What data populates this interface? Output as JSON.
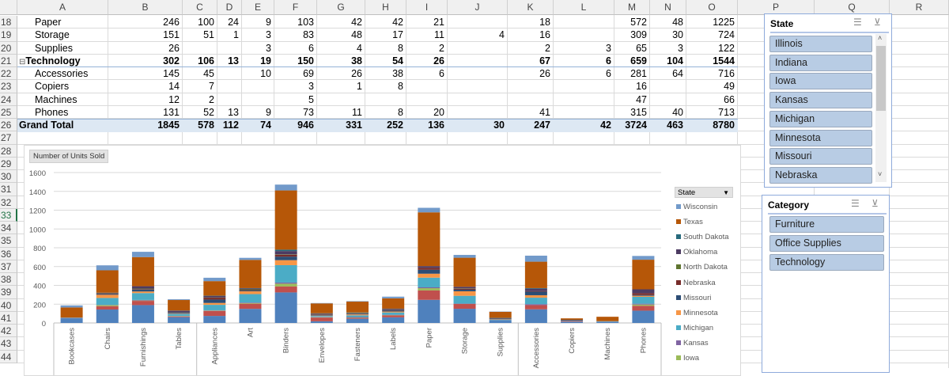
{
  "sheet": {
    "columns": [
      "A",
      "B",
      "C",
      "D",
      "E",
      "F",
      "G",
      "H",
      "I",
      "J",
      "K",
      "L",
      "M",
      "N",
      "O",
      "P",
      "Q",
      "R"
    ],
    "row_numbers": [
      18,
      19,
      20,
      21,
      22,
      23,
      24,
      25,
      26,
      27,
      28,
      29,
      30,
      31,
      32,
      33,
      34,
      35,
      36,
      37,
      38,
      39,
      40,
      41,
      42,
      43,
      44
    ],
    "selected_row": 33,
    "table_rows": [
      {
        "label": "Paper",
        "type": "item",
        "values": [
          "246",
          "100",
          "24",
          "9",
          "103",
          "42",
          "42",
          "21",
          "",
          "18",
          "",
          "572",
          "48",
          "1225"
        ]
      },
      {
        "label": "Storage",
        "type": "item",
        "values": [
          "151",
          "51",
          "1",
          "3",
          "83",
          "48",
          "17",
          "11",
          "4",
          "16",
          "",
          "309",
          "30",
          "724"
        ]
      },
      {
        "label": "Supplies",
        "type": "item",
        "values": [
          "26",
          "",
          "",
          "3",
          "6",
          "4",
          "8",
          "2",
          "",
          "2",
          "3",
          "65",
          "3",
          "122"
        ]
      },
      {
        "label": "Technology",
        "type": "group",
        "values": [
          "302",
          "106",
          "13",
          "19",
          "150",
          "38",
          "54",
          "26",
          "",
          "67",
          "6",
          "659",
          "104",
          "1544"
        ]
      },
      {
        "label": "Accessories",
        "type": "item",
        "values": [
          "145",
          "45",
          "",
          "10",
          "69",
          "26",
          "38",
          "6",
          "",
          "26",
          "6",
          "281",
          "64",
          "716"
        ]
      },
      {
        "label": "Copiers",
        "type": "item",
        "values": [
          "14",
          "7",
          "",
          "",
          "3",
          "1",
          "8",
          "",
          "",
          "",
          "",
          "16",
          "",
          "49"
        ]
      },
      {
        "label": "Machines",
        "type": "item",
        "values": [
          "12",
          "2",
          "",
          "",
          "5",
          "",
          "",
          "",
          "",
          "",
          "",
          "47",
          "",
          "66"
        ]
      },
      {
        "label": "Phones",
        "type": "item",
        "values": [
          "131",
          "52",
          "13",
          "9",
          "73",
          "11",
          "8",
          "20",
          "",
          "41",
          "",
          "315",
          "40",
          "713"
        ]
      },
      {
        "label": "Grand Total",
        "type": "total",
        "values": [
          "1845",
          "578",
          "112",
          "74",
          "946",
          "331",
          "252",
          "136",
          "30",
          "247",
          "42",
          "3724",
          "463",
          "8780"
        ]
      }
    ]
  },
  "chart_data": {
    "type": "bar",
    "stacked": true,
    "title": "Number of Units Sold",
    "legend_title": "State",
    "legend_position": "right",
    "ylim": [
      0,
      1600
    ],
    "yticks": [
      "0",
      "200",
      "400",
      "600",
      "800",
      "1000",
      "1200",
      "1400",
      "1600"
    ],
    "grid": true,
    "categories": [
      "Bookcases",
      "Chairs",
      "Furnishings",
      "Tables",
      "Appliances",
      "Art",
      "Binders",
      "Envelopes",
      "Fasteners",
      "Labels",
      "Paper",
      "Storage",
      "Supplies",
      "Accessories",
      "Copiers",
      "Machines",
      "Phones"
    ],
    "series": [
      {
        "name": "Illinois",
        "color": "#4f81bd",
        "values": [
          50,
          143,
          190,
          62,
          75,
          150,
          325,
          18,
          45,
          60,
          246,
          151,
          26,
          145,
          14,
          12,
          131
        ]
      },
      {
        "name": "Indiana",
        "color": "#c0504d",
        "values": [
          3,
          36,
          45,
          8,
          53,
          55,
          63,
          40,
          10,
          20,
          100,
          51,
          0,
          45,
          7,
          2,
          52
        ]
      },
      {
        "name": "Iowa",
        "color": "#9bbb59",
        "values": [
          0,
          11,
          4,
          4,
          4,
          6,
          30,
          3,
          3,
          3,
          24,
          1,
          0,
          0,
          0,
          0,
          13
        ]
      },
      {
        "name": "Kansas",
        "color": "#8064a2",
        "values": [
          0,
          3,
          6,
          2,
          3,
          6,
          12,
          3,
          5,
          4,
          9,
          3,
          3,
          10,
          0,
          0,
          9
        ]
      },
      {
        "name": "Michigan",
        "color": "#4bacc6",
        "values": [
          3,
          73,
          73,
          20,
          58,
          90,
          185,
          10,
          18,
          25,
          103,
          83,
          6,
          69,
          3,
          5,
          73
        ]
      },
      {
        "name": "Minnesota",
        "color": "#f79646",
        "values": [
          0,
          34,
          17,
          4,
          20,
          30,
          53,
          5,
          10,
          10,
          42,
          48,
          4,
          26,
          1,
          0,
          11
        ]
      },
      {
        "name": "Missouri",
        "color": "#2c4d75",
        "values": [
          2,
          8,
          20,
          8,
          36,
          8,
          38,
          8,
          8,
          12,
          42,
          17,
          8,
          38,
          8,
          0,
          8
        ]
      },
      {
        "name": "Nebraska",
        "color": "#772c2a",
        "values": [
          0,
          5,
          6,
          3,
          20,
          5,
          20,
          5,
          3,
          5,
          21,
          11,
          2,
          6,
          0,
          0,
          20
        ]
      },
      {
        "name": "North Dakota",
        "color": "#5f7530",
        "values": [
          0,
          3,
          5,
          2,
          3,
          8,
          4,
          3,
          5,
          2,
          0,
          4,
          0,
          0,
          0,
          0,
          0
        ]
      },
      {
        "name": "Oklahoma",
        "color": "#4d3b62",
        "values": [
          0,
          6,
          25,
          17,
          15,
          10,
          35,
          6,
          3,
          8,
          18,
          16,
          2,
          26,
          0,
          0,
          41
        ]
      },
      {
        "name": "South Dakota",
        "color": "#276a7c",
        "values": [
          0,
          0,
          0,
          2,
          3,
          3,
          15,
          2,
          2,
          3,
          0,
          0,
          3,
          6,
          0,
          0,
          0
        ]
      },
      {
        "name": "Texas",
        "color": "#b65708",
        "values": [
          107,
          238,
          310,
          112,
          155,
          300,
          630,
          105,
          115,
          110,
          572,
          309,
          65,
          281,
          16,
          47,
          315
        ]
      },
      {
        "name": "Wisconsin",
        "color": "#729aca",
        "values": [
          22,
          53,
          56,
          8,
          36,
          22,
          62,
          4,
          5,
          18,
          48,
          30,
          3,
          64,
          0,
          0,
          40
        ]
      }
    ],
    "legend_visible": [
      "Wisconsin",
      "Texas",
      "South Dakota",
      "Oklahoma",
      "North Dakota",
      "Nebraska",
      "Missouri",
      "Minnesota",
      "Michigan",
      "Kansas",
      "Iowa"
    ]
  },
  "slicers": {
    "state": {
      "title": "State",
      "items": [
        "Illinois",
        "Indiana",
        "Iowa",
        "Kansas",
        "Michigan",
        "Minnesota",
        "Missouri",
        "Nebraska"
      ]
    },
    "category": {
      "title": "Category",
      "items": [
        "Furniture",
        "Office Supplies",
        "Technology"
      ]
    },
    "icons": {
      "multi_select": "multi-select-icon",
      "clear_filter": "clear-filter-icon"
    }
  }
}
